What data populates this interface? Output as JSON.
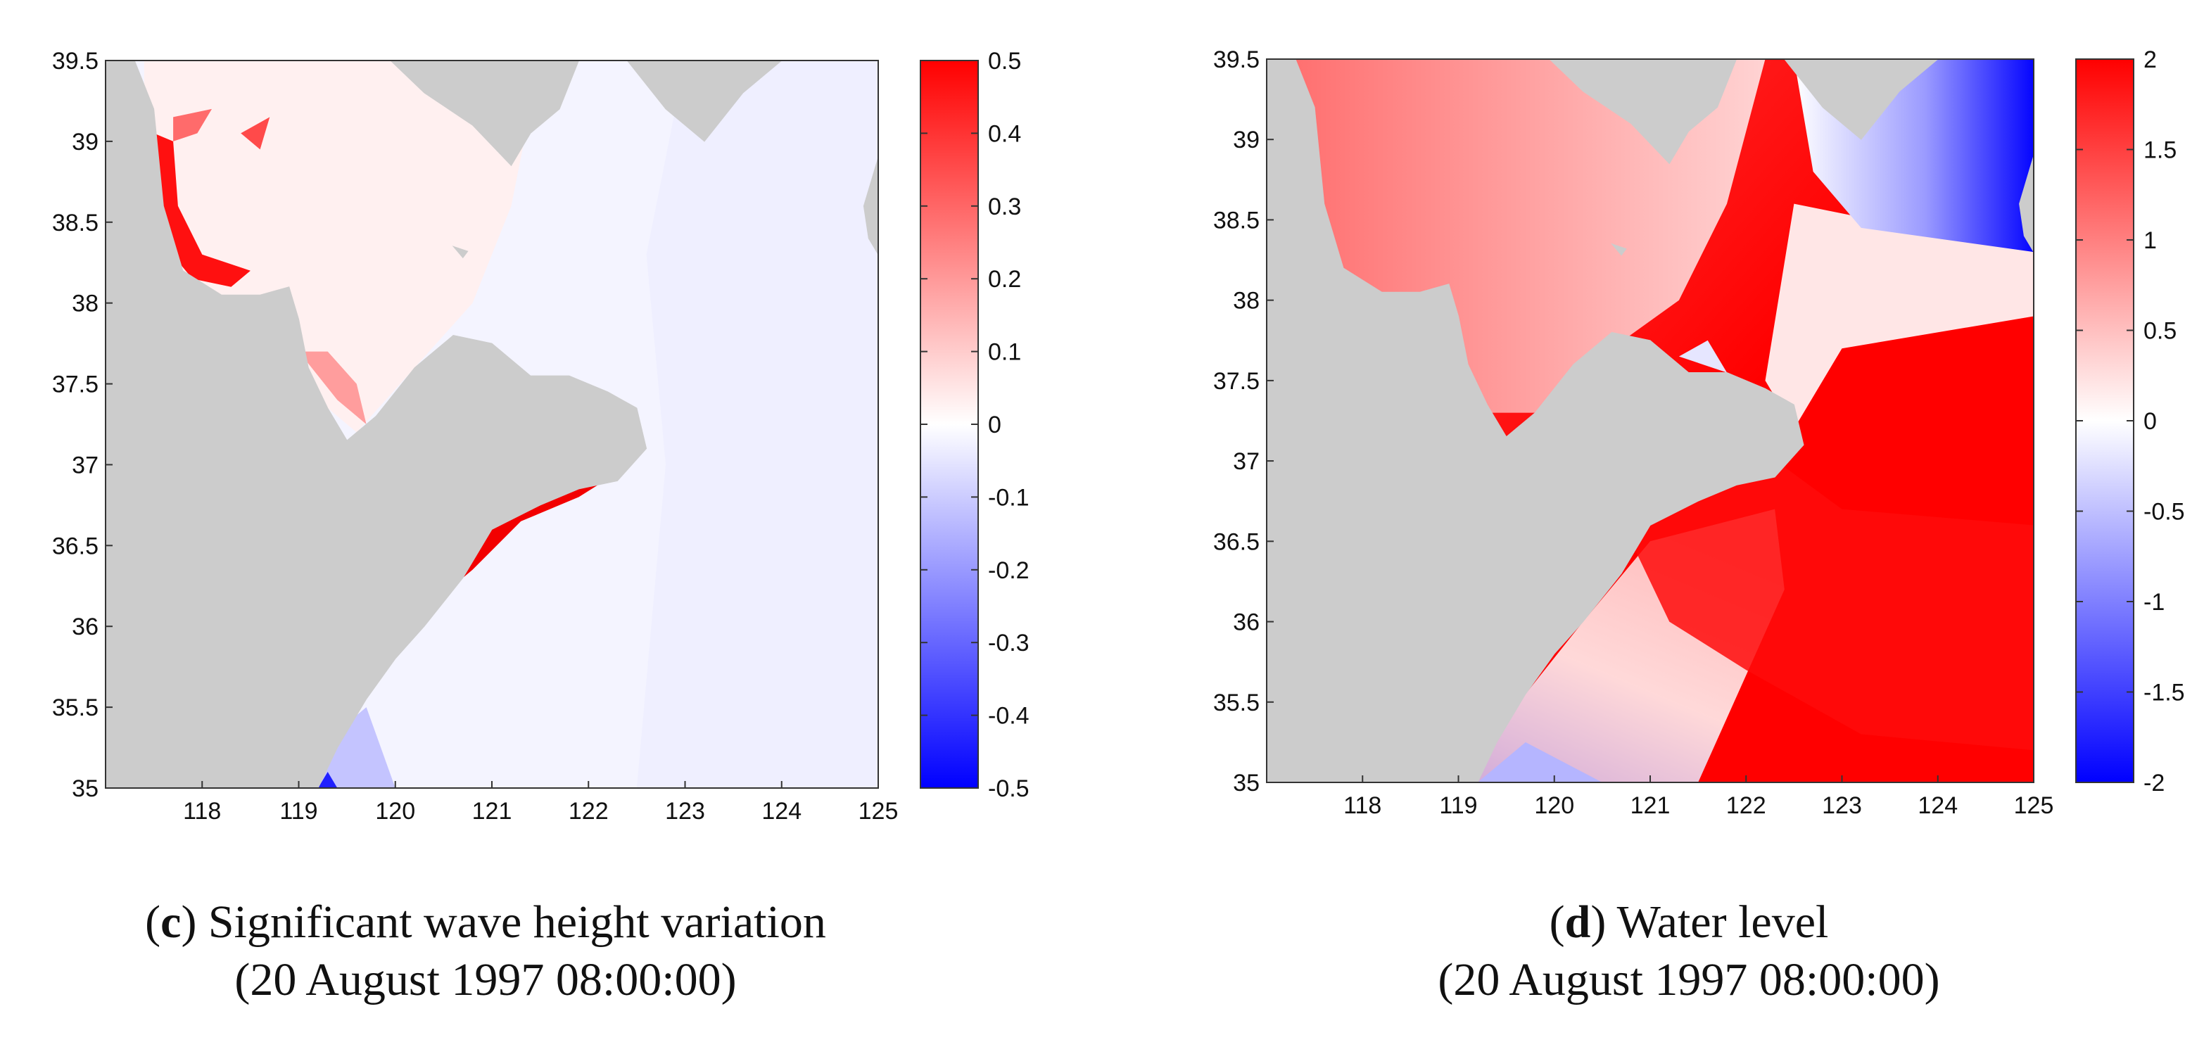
{
  "chart_data": [
    {
      "type": "heatmap",
      "panel_letter": "c",
      "caption_title": "Significant wave height variation",
      "caption_time": "(20 August 1997 08:00:00)",
      "xlim": [
        117,
        125
      ],
      "ylim": [
        35,
        39.5
      ],
      "x_ticks": [
        "118",
        "119",
        "120",
        "121",
        "122",
        "123",
        "124",
        "125"
      ],
      "y_ticks": [
        "35",
        "35.5",
        "36",
        "36.5",
        "37",
        "37.5",
        "38",
        "38.5",
        "39",
        "39.5"
      ],
      "colorbar": {
        "range": [
          -0.5,
          0.5
        ],
        "ticks": [
          "-0.5",
          "-0.4",
          "-0.3",
          "-0.2",
          "-0.1",
          "0",
          "0.1",
          "0.2",
          "0.3",
          "0.4",
          "0.5"
        ]
      },
      "colormap": {
        "low": "#0000ff",
        "mid": "#ffffff",
        "high": "#ff0000",
        "land": "#cccccc"
      }
    },
    {
      "type": "heatmap",
      "panel_letter": "d",
      "caption_title": "Water level",
      "caption_time": "(20 August 1997 08:00:00)",
      "xlim": [
        117,
        125
      ],
      "ylim": [
        35,
        39.5
      ],
      "x_ticks": [
        "118",
        "119",
        "120",
        "121",
        "122",
        "123",
        "124",
        "125"
      ],
      "y_ticks": [
        "35",
        "35.5",
        "36",
        "36.5",
        "37",
        "37.5",
        "38",
        "38.5",
        "39",
        "39.5"
      ],
      "colorbar": {
        "range": [
          -2,
          2
        ],
        "ticks": [
          "-2",
          "-1.5",
          "-1",
          "-0.5",
          "0",
          "0.5",
          "1",
          "1.5",
          "2"
        ]
      },
      "colormap": {
        "low": "#0000ff",
        "mid": "#ffffff",
        "high": "#ff0000",
        "land": "#cccccc"
      }
    }
  ]
}
